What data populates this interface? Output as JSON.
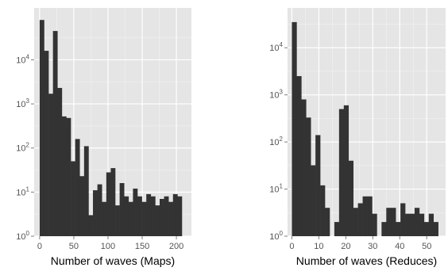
{
  "colors": {
    "panel_bg": "#e5e5e5",
    "grid_major": "#ffffff",
    "grid_minor": "#f2f2f2",
    "bar": "#333333",
    "tick_text": "#555555"
  },
  "chart_data": [
    {
      "type": "bar",
      "subtype": "histogram",
      "xlabel": "Number of waves (Maps)",
      "ylabel": "",
      "y_scale": "log10",
      "ylim": [
        1,
        150000
      ],
      "xlim": [
        -8,
        222
      ],
      "bin_width": 6.5,
      "x_ticks": [
        0,
        50,
        100,
        150,
        200
      ],
      "x_tick_labels": [
        "0",
        "50",
        "100",
        "150",
        "200"
      ],
      "y_ticks": [
        1,
        10,
        100,
        1000,
        10000
      ],
      "y_tick_labels": [
        {
          "base": "10",
          "exp": "0"
        },
        {
          "base": "10",
          "exp": "1"
        },
        {
          "base": "10",
          "exp": "2"
        },
        {
          "base": "10",
          "exp": "3"
        },
        {
          "base": "10",
          "exp": "4"
        }
      ],
      "grid": true,
      "bins_start": [
        0,
        6.5,
        13,
        19.5,
        26,
        32.5,
        39,
        45.5,
        52,
        58.5,
        65,
        71.5,
        78,
        84.5,
        91,
        97.5,
        104,
        110.5,
        117,
        123.5,
        130,
        136.5,
        143,
        149.5,
        156,
        162.5,
        169,
        175.5,
        182,
        188.5,
        195,
        201.5,
        208
      ],
      "counts": [
        80000,
        16000,
        1700,
        45000,
        2300,
        520,
        480,
        50,
        160,
        23,
        110,
        3,
        11,
        15,
        6,
        28,
        35,
        5,
        16,
        8,
        6,
        12,
        8,
        6,
        9,
        8,
        5,
        7,
        8,
        6,
        9,
        8,
        1
      ]
    },
    {
      "type": "bar",
      "subtype": "histogram",
      "xlabel": "Number of waves (Reduces)",
      "ylabel": "",
      "y_scale": "log10",
      "ylim": [
        1,
        70000
      ],
      "xlim": [
        -1.6,
        57
      ],
      "bin_width": 1.75,
      "x_ticks": [
        0,
        10,
        20,
        30,
        40,
        50
      ],
      "x_tick_labels": [
        "0",
        "10",
        "20",
        "30",
        "40",
        "50"
      ],
      "y_ticks": [
        1,
        10,
        100,
        1000,
        10000
      ],
      "y_tick_labels": [
        {
          "base": "10",
          "exp": "0"
        },
        {
          "base": "10",
          "exp": "1"
        },
        {
          "base": "10",
          "exp": "2"
        },
        {
          "base": "10",
          "exp": "3"
        },
        {
          "base": "10",
          "exp": "4"
        }
      ],
      "grid": true,
      "bins_start": [
        0,
        1.75,
        3.5,
        5.25,
        7,
        8.75,
        10.5,
        12.25,
        14,
        15.75,
        17.5,
        19.25,
        21,
        22.75,
        24.5,
        26.25,
        28,
        29.75,
        31.5,
        33.25,
        35,
        36.75,
        38.5,
        40.25,
        42,
        43.75,
        45.5,
        47.25,
        49,
        50.75,
        52.5
      ],
      "counts": [
        35000,
        2500,
        800,
        330,
        32,
        140,
        12,
        4,
        1,
        2,
        500,
        600,
        40,
        4,
        5,
        7,
        7,
        3,
        0,
        2,
        4,
        4,
        2,
        5,
        3,
        3,
        4,
        3,
        2,
        3,
        2
      ]
    }
  ]
}
